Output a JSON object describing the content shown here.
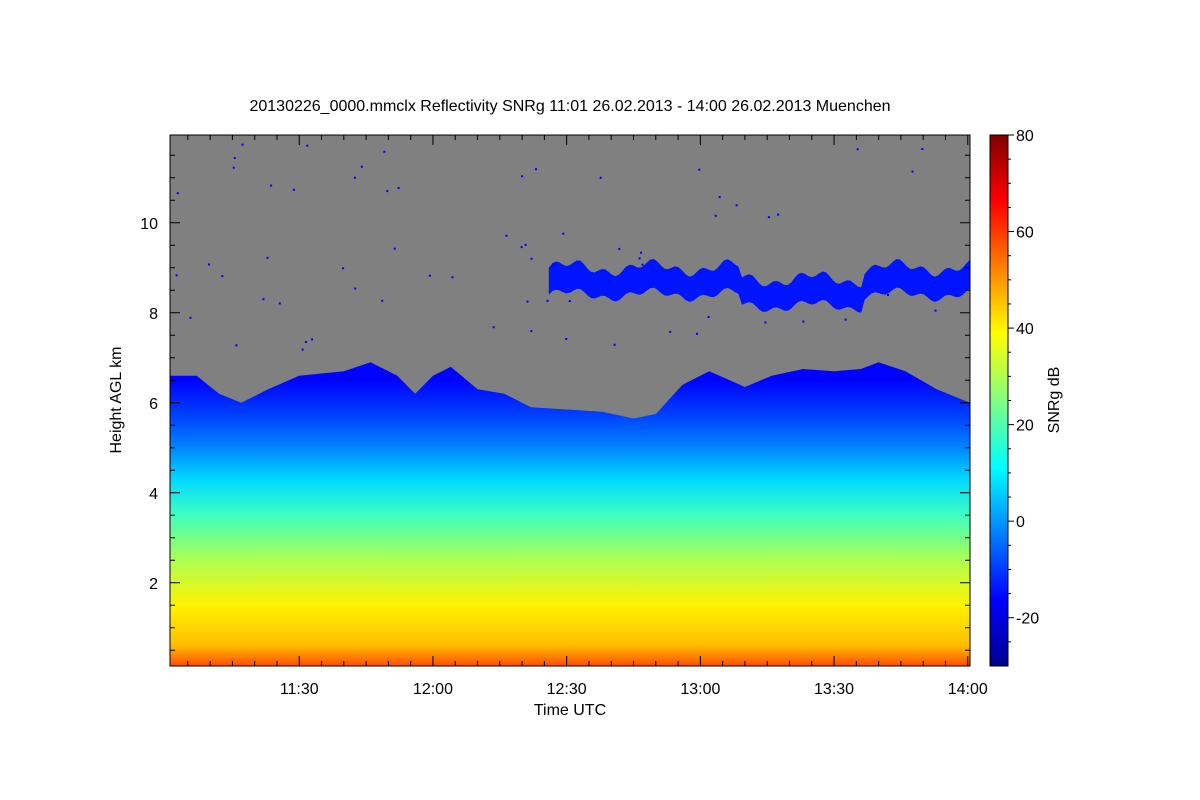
{
  "chart_data": {
    "type": "heatmap",
    "title": "20130226_0000.mmclx Reflectivity SNRg   11:01 26.02.2013 - 14:00 26.02.2013 Muenchen",
    "xlabel": "Time UTC",
    "ylabel": "Height AGL km",
    "colorbar_label": "SNRg dB",
    "x_range_minutes": [
      661,
      840.5
    ],
    "x_ticks": [
      {
        "minute": 690,
        "label": "11:30"
      },
      {
        "minute": 720,
        "label": "12:00"
      },
      {
        "minute": 750,
        "label": "12:30"
      },
      {
        "minute": 780,
        "label": "13:00"
      },
      {
        "minute": 810,
        "label": "13:30"
      },
      {
        "minute": 840,
        "label": "14:00"
      }
    ],
    "y_range": [
      0.15,
      11.95
    ],
    "y_ticks": [
      2,
      4,
      6,
      8,
      10
    ],
    "colorbar_range": [
      -30,
      80
    ],
    "colorbar_ticks": [
      -20,
      0,
      20,
      40,
      60,
      80
    ],
    "no_signal_color": "#808080",
    "colormap": [
      "#00008f",
      "#0000ff",
      "#0080ff",
      "#00ffff",
      "#80ff80",
      "#ffff00",
      "#ff8000",
      "#ff0000",
      "#800000"
    ],
    "echo_top_km": [
      {
        "t": 661,
        "h": 6.6
      },
      {
        "t": 667,
        "h": 6.6
      },
      {
        "t": 672,
        "h": 6.2
      },
      {
        "t": 677,
        "h": 6.0
      },
      {
        "t": 683,
        "h": 6.3
      },
      {
        "t": 690,
        "h": 6.6
      },
      {
        "t": 700,
        "h": 6.7
      },
      {
        "t": 706,
        "h": 6.9
      },
      {
        "t": 712,
        "h": 6.6
      },
      {
        "t": 716,
        "h": 6.2
      },
      {
        "t": 720,
        "h": 6.6
      },
      {
        "t": 724,
        "h": 6.8
      },
      {
        "t": 730,
        "h": 6.3
      },
      {
        "t": 736,
        "h": 6.2
      },
      {
        "t": 742,
        "h": 5.9
      },
      {
        "t": 750,
        "h": 5.85
      },
      {
        "t": 758,
        "h": 5.8
      },
      {
        "t": 765,
        "h": 5.65
      },
      {
        "t": 770,
        "h": 5.75
      },
      {
        "t": 776,
        "h": 6.4
      },
      {
        "t": 782,
        "h": 6.7
      },
      {
        "t": 790,
        "h": 6.35
      },
      {
        "t": 796,
        "h": 6.6
      },
      {
        "t": 803,
        "h": 6.75
      },
      {
        "t": 810,
        "h": 6.7
      },
      {
        "t": 816,
        "h": 6.75
      },
      {
        "t": 820,
        "h": 6.9
      },
      {
        "t": 826,
        "h": 6.7
      },
      {
        "t": 833,
        "h": 6.3
      },
      {
        "t": 840.5,
        "h": 6.0
      }
    ],
    "snr_profile": [
      {
        "h": 0.15,
        "snr": 58
      },
      {
        "h": 0.6,
        "snr": 46
      },
      {
        "h": 1.5,
        "snr": 40
      },
      {
        "h": 2.5,
        "snr": 30
      },
      {
        "h": 3.5,
        "snr": 18
      },
      {
        "h": 4.3,
        "snr": 7
      },
      {
        "h": 5.0,
        "snr": -2
      },
      {
        "h": 5.8,
        "snr": -10
      },
      {
        "h": 6.5,
        "snr": -16
      }
    ],
    "upper_layer": {
      "t_start": 746,
      "t_end": 840.5,
      "base_km": 8.4,
      "top_km": 9.0
    }
  }
}
